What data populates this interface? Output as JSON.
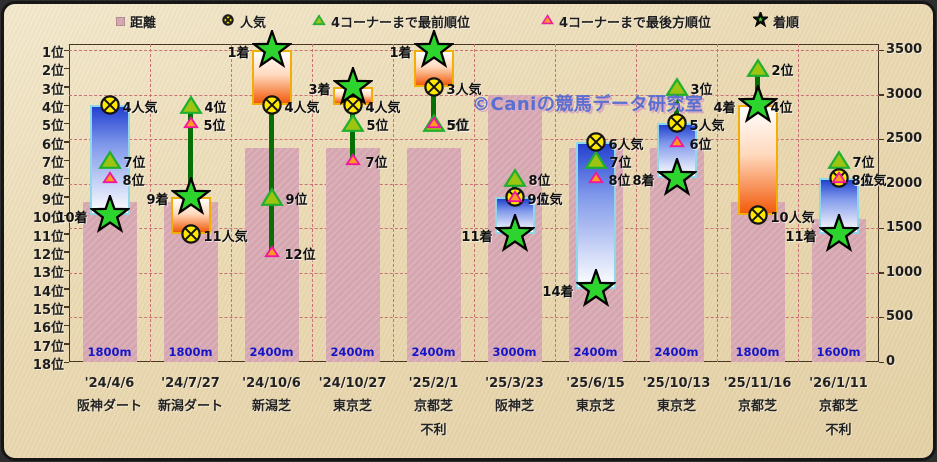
{
  "watermark": "©Caniの競馬データ研究室",
  "legend": [
    {
      "id": "distance",
      "label": "距離",
      "marker": "square"
    },
    {
      "id": "popularity",
      "label": "人気",
      "marker": "circle-x"
    },
    {
      "id": "front-position",
      "label": "4コーナーまで最前順位",
      "marker": "triangle-front"
    },
    {
      "id": "rear-position",
      "label": "4コーナーまで最後方順位",
      "marker": "triangle-rear"
    },
    {
      "id": "finish",
      "label": "着順",
      "marker": "star"
    }
  ],
  "chart_data": {
    "type": "bar",
    "title": "",
    "legend_position": "top",
    "grid": true,
    "categories": [
      {
        "date": "'24/4/6",
        "course": "阪神ダート",
        "note": ""
      },
      {
        "date": "'24/7/27",
        "course": "新潟ダート",
        "note": ""
      },
      {
        "date": "'24/10/6",
        "course": "新潟芝",
        "note": ""
      },
      {
        "date": "'24/10/27",
        "course": "東京芝",
        "note": ""
      },
      {
        "date": "'25/2/1",
        "course": "京都芝",
        "note": "不利"
      },
      {
        "date": "'25/3/23",
        "course": "阪神芝",
        "note": ""
      },
      {
        "date": "'25/6/15",
        "course": "東京芝",
        "note": ""
      },
      {
        "date": "'25/10/13",
        "course": "東京芝",
        "note": ""
      },
      {
        "date": "'25/11/16",
        "course": "京都芝",
        "note": ""
      },
      {
        "date": "'26/1/11",
        "course": "京都芝",
        "note": "不利"
      }
    ],
    "series": [
      {
        "name": "距離",
        "axis": "right",
        "unit": "m",
        "values": [
          1800,
          1800,
          2400,
          2400,
          2400,
          3000,
          2400,
          2400,
          1800,
          1600
        ]
      },
      {
        "name": "人気",
        "axis": "left",
        "suffix": "人気",
        "values": [
          4,
          11,
          4,
          4,
          3,
          9,
          6,
          5,
          10,
          8
        ]
      },
      {
        "name": "4コーナーまで最前順位",
        "axis": "left",
        "suffix": "位",
        "values": [
          7,
          4,
          9,
          5,
          5,
          8,
          7,
          3,
          2,
          7
        ]
      },
      {
        "name": "4コーナーまで最後方順位",
        "axis": "left",
        "suffix": "位",
        "values": [
          8,
          5,
          12,
          7,
          5,
          9,
          8,
          6,
          4,
          8
        ]
      },
      {
        "name": "着順",
        "axis": "left",
        "suffix": "着",
        "values": [
          10,
          9,
          1,
          3,
          1,
          11,
          14,
          8,
          4,
          11
        ]
      }
    ],
    "left_axis": {
      "ticks": [
        "1位",
        "2位",
        "3位",
        "4位",
        "5位",
        "6位",
        "7位",
        "8位",
        "9位",
        "10位",
        "11位",
        "12位",
        "13位",
        "14位",
        "15位",
        "16位",
        "17位",
        "18位"
      ],
      "min": 1,
      "max": 18,
      "direction": "down"
    },
    "right_axis": {
      "ticks": [
        "3500",
        "3000",
        "2500",
        "2000",
        "1500",
        "1000",
        "500",
        "0"
      ],
      "min": 0,
      "max": 3500,
      "step": 500
    }
  },
  "colors": {
    "distance_bar": "#d6a6b0",
    "loss_bar_top": "#2240d0",
    "loss_bar_border": "#8fd8ea",
    "gain_bar_bottom": "#f25a0a",
    "gain_bar_border": "#f0ae06",
    "high_low_line": "#067006",
    "star": "#2ed42e",
    "popularity": "#ffe800",
    "front_fill": "#9cc410",
    "front_border": "#1fae2f",
    "rear_fill": "#ff9b1e",
    "rear_border": "#f0169f",
    "distance_label": "#1515c8",
    "watermark": "#5a6fd0",
    "watermark_shadow": "#d9a9bf",
    "grid": "#c96f74"
  }
}
